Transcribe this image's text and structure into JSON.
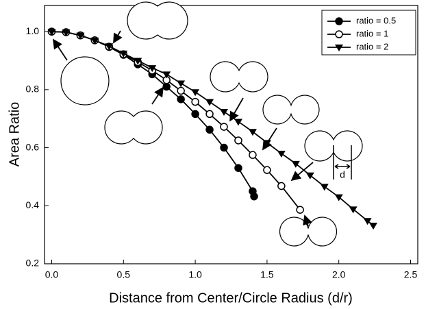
{
  "chart_data": {
    "type": "line",
    "xlabel": "Distance from Center/Circle Radius (d/r)",
    "ylabel": "Area Ratio",
    "xlim": [
      -0.05,
      2.55
    ],
    "ylim": [
      0.2,
      1.09
    ],
    "xticks": [
      {
        "value": 0,
        "label": "0.0"
      },
      0.5,
      {
        "value": 1,
        "label": "1.0"
      },
      1.5,
      {
        "value": 2,
        "label": "2.0"
      },
      2.5
    ],
    "yticks": [
      0.2,
      0.4,
      0.6,
      0.8,
      {
        "value": 1,
        "label": "1.0"
      }
    ],
    "legend_position": "upper right",
    "annotation": "d",
    "series": [
      {
        "name": "ratio = 0.5",
        "color": "#000000",
        "marker": "filled-circle",
        "x": [
          0,
          0.1,
          0.2,
          0.3,
          0.4,
          0.5,
          0.6,
          0.7,
          0.8,
          0.9,
          1.0,
          1.1,
          1.2,
          1.3,
          1.4,
          1.41
        ],
        "values": [
          1.0,
          0.998,
          0.987,
          0.97,
          0.947,
          0.92,
          0.887,
          0.853,
          0.81,
          0.767,
          0.716,
          0.662,
          0.6,
          0.53,
          0.45,
          0.432
        ]
      },
      {
        "name": "ratio = 1",
        "color": "#000000",
        "marker": "open-circle",
        "x": [
          0,
          0.1,
          0.2,
          0.3,
          0.4,
          0.5,
          0.6,
          0.7,
          0.8,
          0.9,
          1.0,
          1.1,
          1.2,
          1.3,
          1.4,
          1.5,
          1.6,
          1.73
        ],
        "values": [
          1.0,
          0.998,
          0.987,
          0.97,
          0.948,
          0.922,
          0.895,
          0.866,
          0.833,
          0.796,
          0.758,
          0.716,
          0.672,
          0.625,
          0.575,
          0.523,
          0.468,
          0.386
        ]
      },
      {
        "name": "ratio = 2",
        "color": "#000000",
        "marker": "triangle-down",
        "x": [
          0,
          0.1,
          0.2,
          0.3,
          0.4,
          0.5,
          0.6,
          0.7,
          0.8,
          0.9,
          1.0,
          1.1,
          1.2,
          1.3,
          1.4,
          1.5,
          1.6,
          1.7,
          1.8,
          1.9,
          2.0,
          2.1,
          2.2,
          2.24
        ],
        "values": [
          1.0,
          0.998,
          0.987,
          0.97,
          0.95,
          0.925,
          0.9,
          0.875,
          0.853,
          0.822,
          0.792,
          0.758,
          0.724,
          0.69,
          0.655,
          0.617,
          0.58,
          0.545,
          0.505,
          0.466,
          0.43,
          0.388,
          0.348,
          0.332
        ]
      }
    ]
  }
}
